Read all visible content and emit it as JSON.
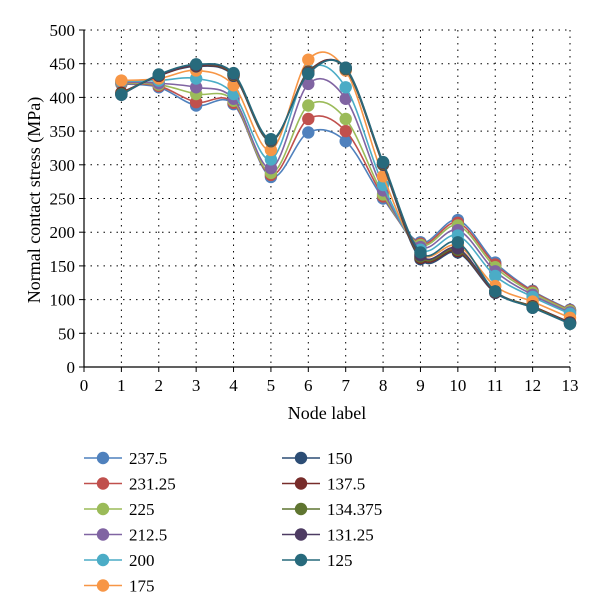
{
  "chart_data": {
    "type": "line",
    "xlabel": "Node label",
    "ylabel": "Normal contact stress (MPa)",
    "xlim": [
      0,
      13
    ],
    "ylim": [
      0,
      500
    ],
    "x_ticks": [
      "0",
      "1",
      "2",
      "3",
      "4",
      "5",
      "6",
      "7",
      "8",
      "9",
      "10",
      "11",
      "12",
      "13"
    ],
    "y_ticks": [
      "0",
      "50",
      "100",
      "150",
      "200",
      "250",
      "300",
      "350",
      "400",
      "450",
      "500"
    ],
    "grid": "dotted",
    "legend_position": "bottom",
    "x": [
      1,
      2,
      3,
      4,
      5,
      6,
      7,
      8,
      9,
      10,
      11,
      12,
      13
    ],
    "series": [
      {
        "name": "237.5",
        "color": "#4f81bd",
        "values": [
          420,
          415,
          388,
          390,
          282,
          348,
          335,
          250,
          185,
          218,
          155,
          113,
          85
        ]
      },
      {
        "name": "231.25",
        "color": "#c0504d",
        "values": [
          421,
          417,
          393,
          392,
          285,
          368,
          350,
          253,
          183,
          214,
          152,
          112,
          84
        ]
      },
      {
        "name": "225",
        "color": "#9bbb59",
        "values": [
          422,
          419,
          405,
          395,
          288,
          388,
          368,
          256,
          181,
          210,
          148,
          110,
          83
        ]
      },
      {
        "name": "212.5",
        "color": "#8064a2",
        "values": [
          423,
          421,
          415,
          398,
          295,
          420,
          398,
          262,
          178,
          203,
          142,
          107,
          81
        ]
      },
      {
        "name": "200",
        "color": "#4bacc6",
        "values": [
          424,
          425,
          428,
          405,
          308,
          440,
          415,
          270,
          174,
          195,
          135,
          104,
          79
        ]
      },
      {
        "name": "175",
        "color": "#f79646",
        "values": [
          425,
          428,
          440,
          418,
          322,
          456,
          440,
          283,
          168,
          180,
          120,
          97,
          73
        ]
      },
      {
        "name": "150",
        "color": "#2c4d75",
        "values": [
          406,
          432,
          446,
          432,
          335,
          438,
          442,
          300,
          160,
          170,
          110,
          90,
          66
        ]
      },
      {
        "name": "137.5",
        "color": "#772c2a",
        "values": [
          407,
          432,
          447,
          433,
          336,
          438,
          443,
          301,
          162,
          172,
          111,
          90,
          66
        ]
      },
      {
        "name": "134.375",
        "color": "#5f7530",
        "values": [
          405,
          433,
          448,
          434,
          336,
          437,
          443,
          302,
          164,
          174,
          112,
          89,
          65
        ]
      },
      {
        "name": "131.25",
        "color": "#4d3b62",
        "values": [
          404,
          433,
          448,
          435,
          337,
          436,
          444,
          303,
          166,
          176,
          112,
          88,
          65
        ]
      },
      {
        "name": "125",
        "color": "#276a7c",
        "values": [
          404,
          434,
          449,
          436,
          338,
          435,
          444,
          304,
          170,
          185,
          112,
          88,
          64
        ]
      }
    ]
  }
}
